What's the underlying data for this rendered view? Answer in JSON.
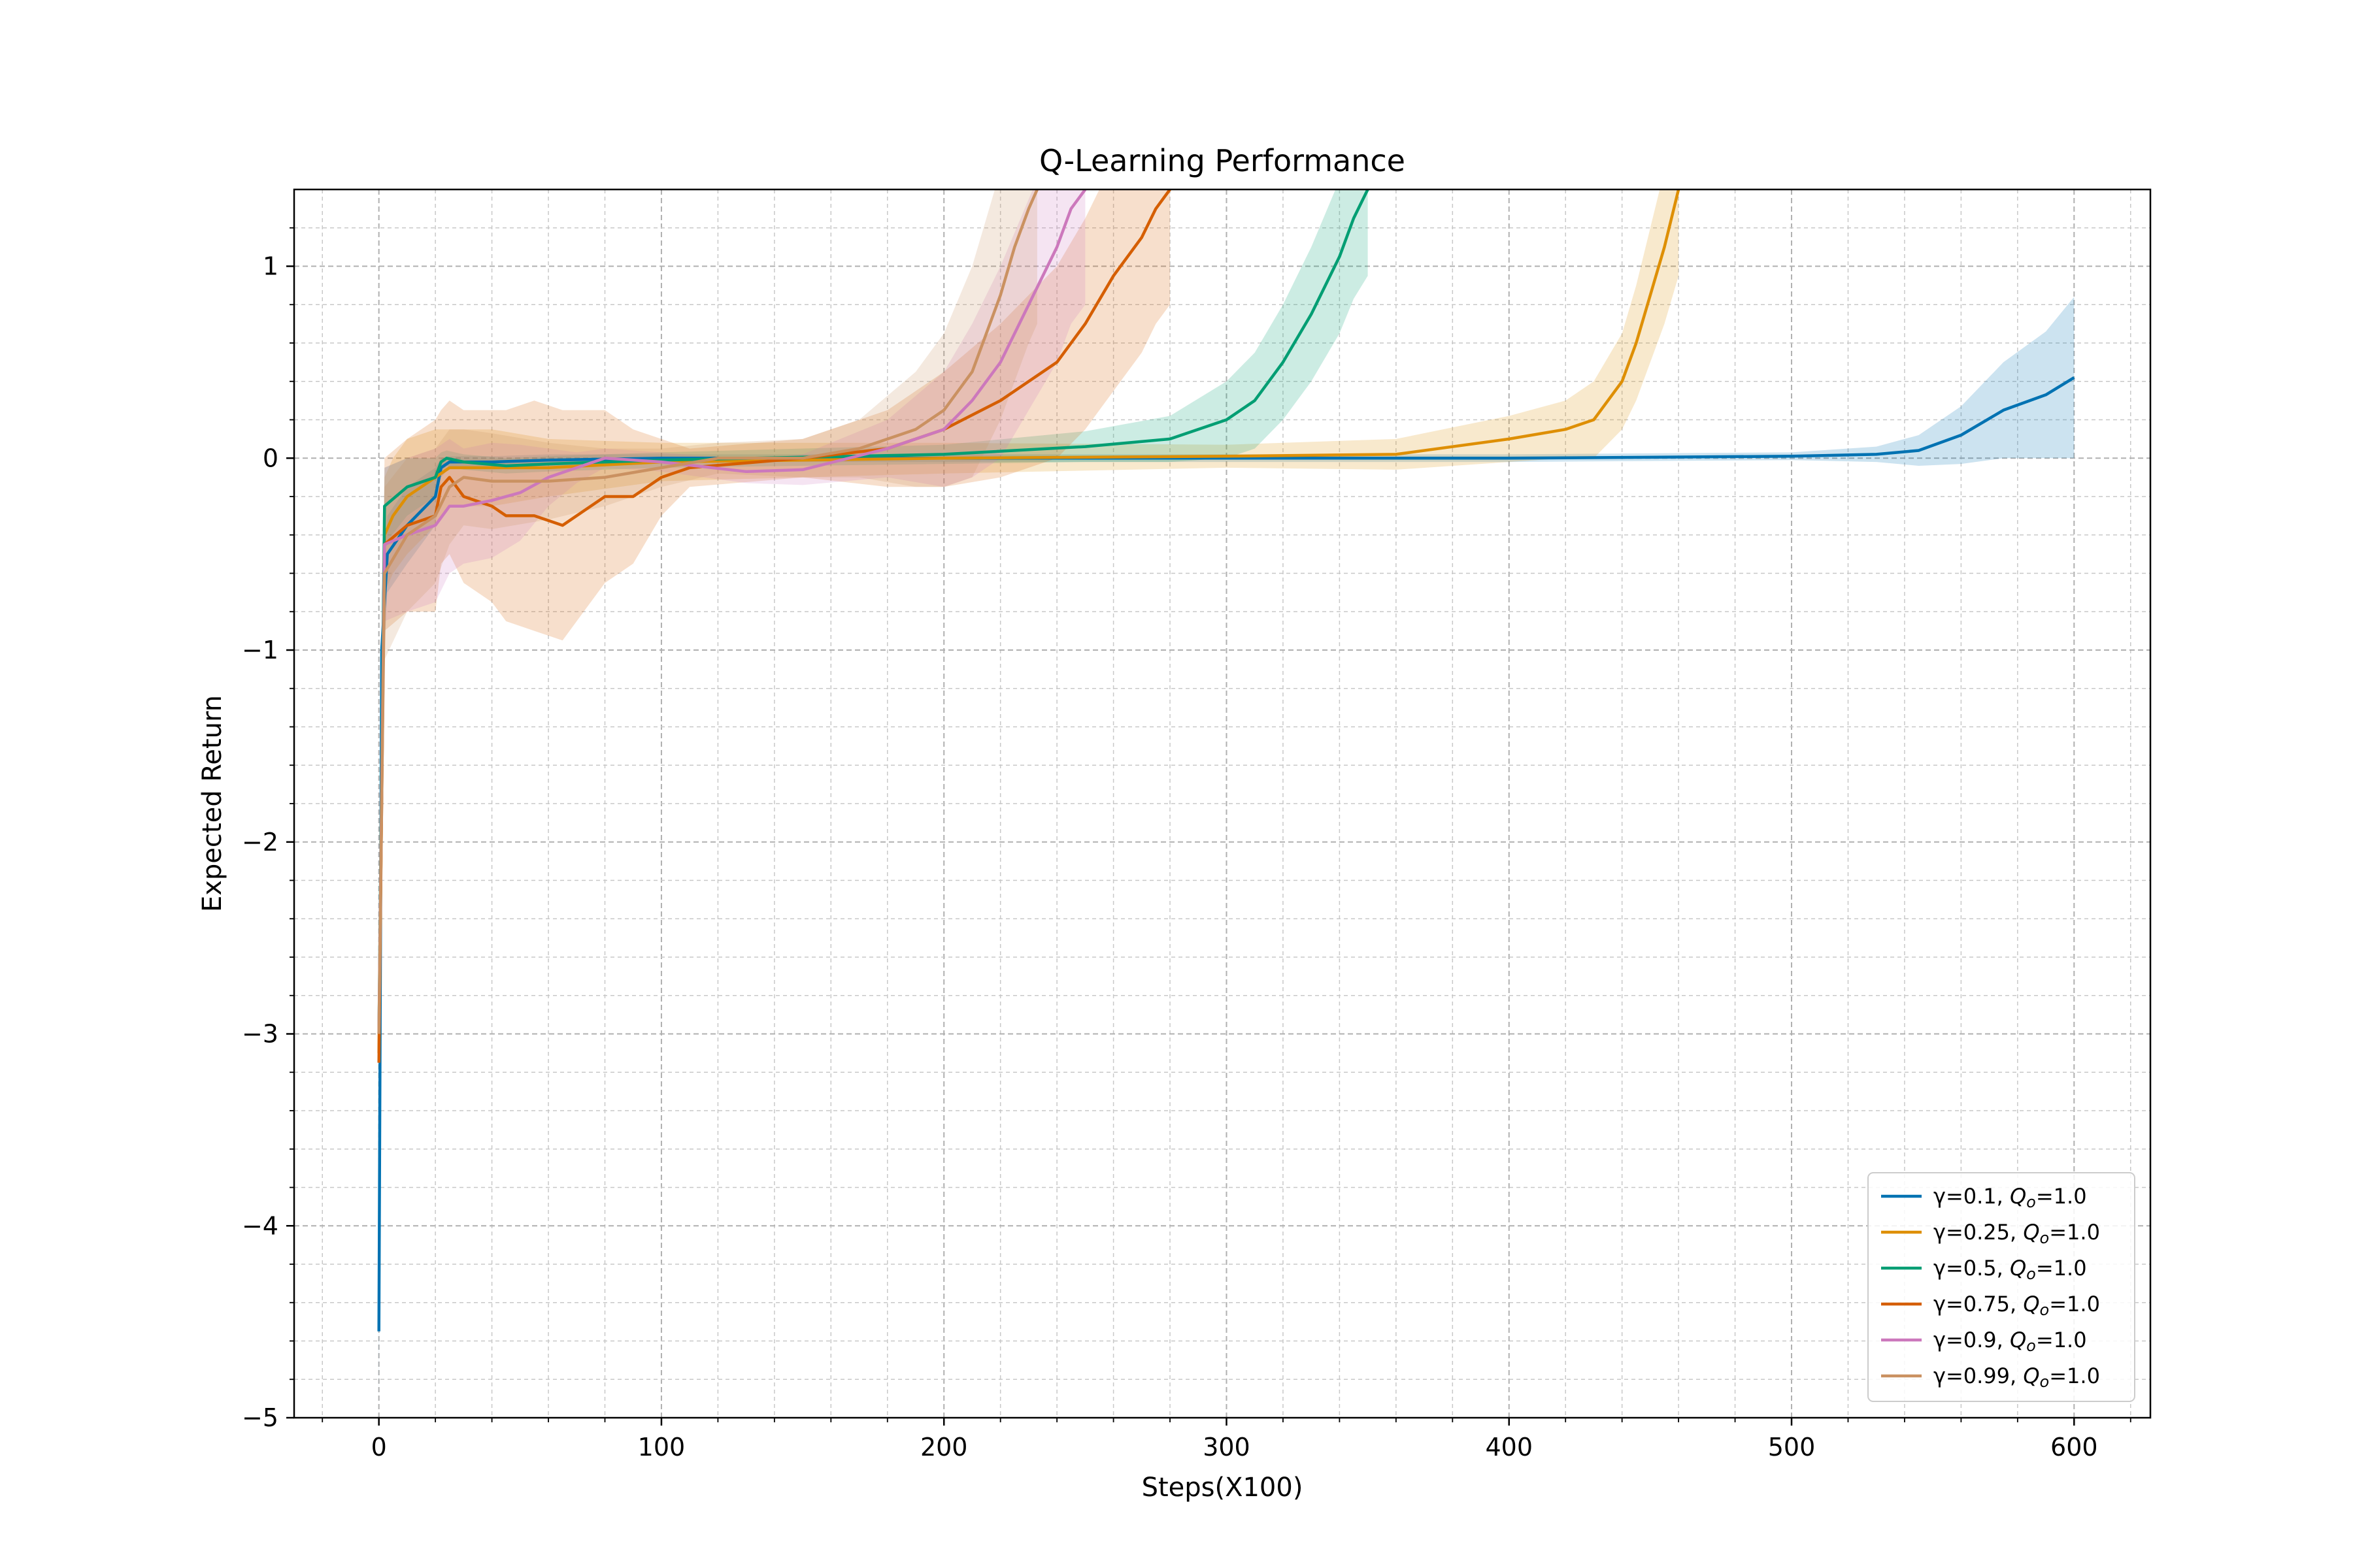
{
  "chart_data": {
    "type": "line",
    "title": "Q-Learning Performance",
    "xlabel": "Steps(X100)",
    "ylabel": "Expected Return",
    "xlim": [
      -30,
      627
    ],
    "ylim": [
      -5,
      1.4
    ],
    "xticks": [
      0,
      100,
      200,
      300,
      400,
      500,
      600
    ],
    "xtick_labels": [
      "0",
      "100",
      "200",
      "300",
      "400",
      "500",
      "600"
    ],
    "yticks": [
      -5,
      -4,
      -3,
      -2,
      -1,
      0,
      1
    ],
    "ytick_labels": [
      "−5",
      "−4",
      "−3",
      "−2",
      "−1",
      "0",
      "1"
    ],
    "grid": true,
    "minor_grid": true,
    "legend_position": "lower-right",
    "series": [
      {
        "name": "γ=0.1, Q_o=1.0",
        "color": "#0072b2",
        "x": [
          0,
          1,
          3,
          10,
          20,
          22,
          25,
          30,
          40,
          60,
          100,
          200,
          300,
          400,
          500,
          530,
          545,
          560,
          575,
          590,
          600
        ],
        "y": [
          -4.55,
          -1.0,
          -0.5,
          -0.35,
          -0.2,
          -0.05,
          -0.02,
          -0.02,
          -0.02,
          -0.01,
          0.0,
          0.0,
          0.0,
          0.0,
          0.01,
          0.02,
          0.04,
          0.12,
          0.25,
          0.33,
          0.42
        ],
        "band": [
          0.4,
          0.3,
          0.2,
          0.2,
          0.15,
          0.05,
          0.03,
          0.03,
          0.03,
          0.03,
          0.02,
          0.02,
          0.02,
          0.02,
          0.02,
          0.04,
          0.08,
          0.15,
          0.25,
          0.33,
          0.42
        ]
      },
      {
        "name": "γ=0.25, Q_o=1.0",
        "color": "#de8f05",
        "x": [
          0,
          2,
          5,
          10,
          20,
          25,
          40,
          60,
          100,
          200,
          300,
          360,
          400,
          420,
          430,
          440,
          445,
          450,
          455,
          460
        ],
        "y": [
          -3.1,
          -0.4,
          -0.3,
          -0.2,
          -0.1,
          -0.05,
          -0.05,
          -0.05,
          -0.02,
          0.0,
          0.01,
          0.02,
          0.1,
          0.15,
          0.2,
          0.4,
          0.6,
          0.85,
          1.1,
          1.4
        ],
        "band": [
          0.4,
          0.3,
          0.3,
          0.3,
          0.25,
          0.2,
          0.2,
          0.15,
          0.1,
          0.08,
          0.06,
          0.08,
          0.12,
          0.15,
          0.2,
          0.25,
          0.3,
          0.35,
          0.4,
          0.45
        ]
      },
      {
        "name": "γ=0.5, Q_o=1.0",
        "color": "#029e73",
        "x": [
          0,
          2,
          10,
          20,
          22,
          24,
          30,
          45,
          60,
          100,
          200,
          250,
          280,
          300,
          310,
          320,
          330,
          340,
          345,
          350
        ],
        "y": [
          -3.0,
          -0.25,
          -0.15,
          -0.1,
          -0.02,
          0.0,
          -0.02,
          -0.04,
          -0.03,
          -0.01,
          0.02,
          0.06,
          0.1,
          0.2,
          0.3,
          0.5,
          0.75,
          1.05,
          1.25,
          1.4
        ],
        "band": [
          0.4,
          0.2,
          0.15,
          0.1,
          0.05,
          0.04,
          0.04,
          0.04,
          0.04,
          0.04,
          0.05,
          0.08,
          0.12,
          0.2,
          0.25,
          0.3,
          0.35,
          0.4,
          0.42,
          0.45
        ]
      },
      {
        "name": "γ=0.75, Q_o=1.0",
        "color": "#d55e00",
        "x": [
          0,
          2,
          10,
          20,
          22,
          25,
          30,
          40,
          45,
          55,
          65,
          70,
          80,
          90,
          100,
          110,
          150,
          180,
          200,
          220,
          240,
          250,
          260,
          270,
          275,
          280
        ],
        "y": [
          -3.15,
          -0.45,
          -0.35,
          -0.3,
          -0.15,
          -0.1,
          -0.2,
          -0.25,
          -0.3,
          -0.3,
          -0.35,
          -0.3,
          -0.2,
          -0.2,
          -0.1,
          -0.05,
          0.0,
          0.05,
          0.15,
          0.3,
          0.5,
          0.7,
          0.95,
          1.15,
          1.3,
          1.4
        ],
        "band": [
          0.5,
          0.45,
          0.45,
          0.5,
          0.4,
          0.4,
          0.45,
          0.5,
          0.55,
          0.6,
          0.6,
          0.55,
          0.45,
          0.35,
          0.2,
          0.1,
          0.1,
          0.2,
          0.3,
          0.4,
          0.5,
          0.55,
          0.6,
          0.6,
          0.6,
          0.6
        ]
      },
      {
        "name": "γ=0.9, Q_o=1.0",
        "color": "#cc78bc",
        "x": [
          0,
          2,
          10,
          20,
          25,
          30,
          40,
          50,
          60,
          70,
          80,
          100,
          130,
          150,
          180,
          200,
          210,
          220,
          230,
          240,
          245,
          250
        ],
        "y": [
          -3.0,
          -0.45,
          -0.4,
          -0.35,
          -0.25,
          -0.25,
          -0.22,
          -0.18,
          -0.1,
          -0.05,
          0.0,
          -0.02,
          -0.07,
          -0.06,
          0.05,
          0.15,
          0.3,
          0.5,
          0.8,
          1.1,
          1.3,
          1.4
        ],
        "band": [
          0.5,
          0.4,
          0.4,
          0.4,
          0.35,
          0.3,
          0.3,
          0.25,
          0.15,
          0.08,
          0.05,
          0.05,
          0.06,
          0.08,
          0.15,
          0.3,
          0.4,
          0.5,
          0.55,
          0.6,
          0.6,
          0.6
        ]
      },
      {
        "name": "γ=0.99, Q_o=1.0",
        "color": "#ca9161",
        "x": [
          0,
          2,
          10,
          20,
          25,
          30,
          40,
          60,
          80,
          100,
          120,
          150,
          170,
          190,
          200,
          210,
          215,
          220,
          225,
          230,
          233
        ],
        "y": [
          -3.0,
          -0.6,
          -0.4,
          -0.3,
          -0.15,
          -0.1,
          -0.12,
          -0.12,
          -0.1,
          -0.05,
          0.0,
          0.0,
          0.05,
          0.15,
          0.25,
          0.45,
          0.65,
          0.85,
          1.1,
          1.3,
          1.4
        ],
        "band": [
          0.5,
          0.45,
          0.4,
          0.35,
          0.3,
          0.25,
          0.25,
          0.2,
          0.15,
          0.1,
          0.08,
          0.1,
          0.15,
          0.3,
          0.4,
          0.55,
          0.6,
          0.65,
          0.7,
          0.7,
          0.7
        ]
      }
    ]
  }
}
